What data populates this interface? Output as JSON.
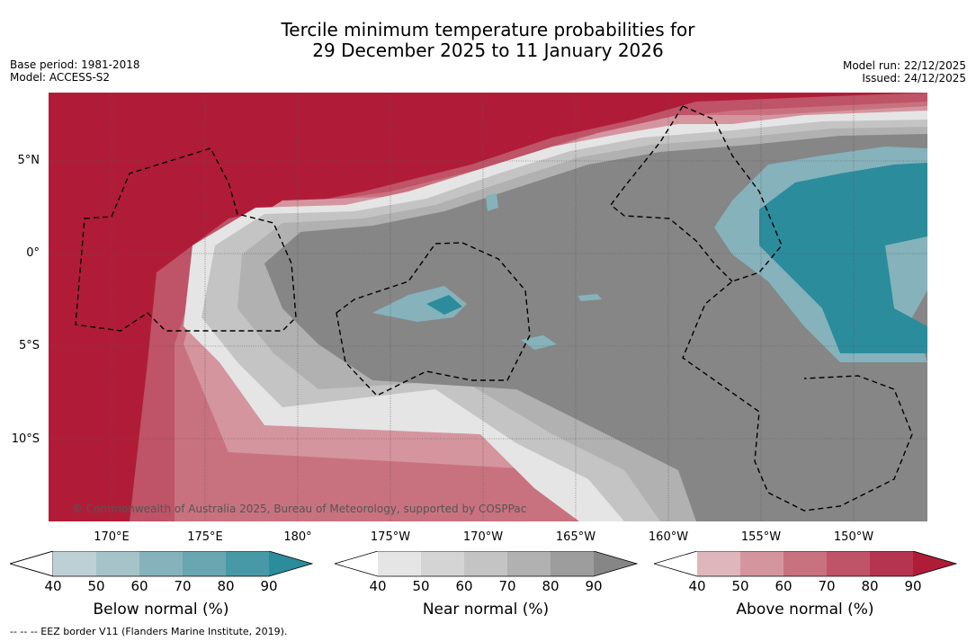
{
  "title_line1": "Tercile minimum temperature probabilities for",
  "title_line2": "29 December 2025 to 11 January 2026",
  "base_period": "Base period: 1981-2018",
  "model": "Model: ACCESS-S2",
  "model_run": "Model run: 22/12/2025",
  "issued": "Issued: 24/12/2025",
  "lat_labels": [
    "5°N",
    "0°",
    "5°S",
    "10°S"
  ],
  "lon_labels": [
    "170°E",
    "175°E",
    "180°",
    "175°W",
    "170°W",
    "165°W",
    "160°W",
    "155°W",
    "150°W"
  ],
  "credit": "© Commonwealth of Australia 2025, Bureau of Meteorology, supported by COSPPac",
  "colors": {
    "below": [
      "#bcd0d6",
      "#a6c3ca",
      "#86b2bb",
      "#68a6b1",
      "#4799a8",
      "#2b8c9c"
    ],
    "near": [
      "#e5e5e5",
      "#d4d4d4",
      "#c4c4c4",
      "#b1b1b1",
      "#9d9d9d",
      "#868686"
    ],
    "above": [
      "#e0b6bd",
      "#d4959f",
      "#c9727f",
      "#bf5367",
      "#b53450",
      "#b01c38"
    ]
  },
  "colorbars": [
    {
      "label": "Below normal (%)",
      "ticks": [
        "40",
        "50",
        "60",
        "70",
        "80",
        "90"
      ]
    },
    {
      "label": "Near normal (%)",
      "ticks": [
        "40",
        "50",
        "60",
        "70",
        "80",
        "90"
      ]
    },
    {
      "label": "Above normal (%)",
      "ticks": [
        "40",
        "50",
        "60",
        "70",
        "80",
        "90"
      ]
    }
  ],
  "footer": "--  --  -- EEZ border V11 (Flanders Marine Institute, 2019)."
}
